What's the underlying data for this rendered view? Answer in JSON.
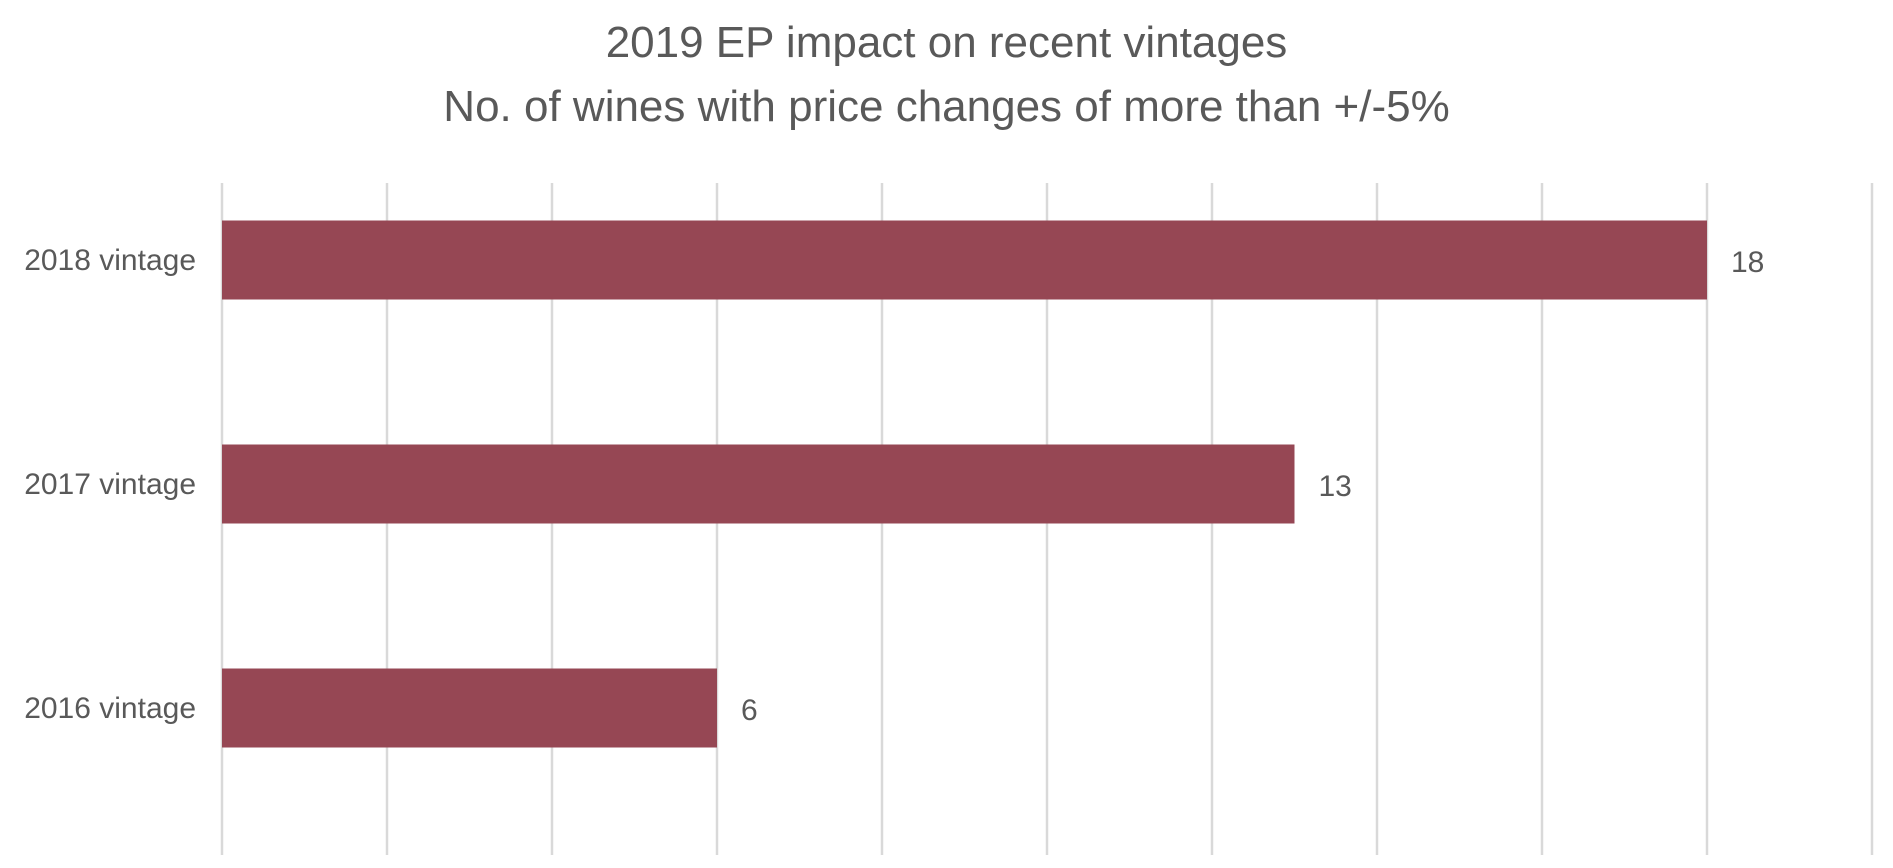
{
  "chart_data": {
    "type": "bar",
    "orientation": "horizontal",
    "title": "2019 EP impact on recent vintages",
    "subtitle": "No. of wines with price changes of more than +/-5%",
    "categories": [
      "2018 vintage",
      "2017 vintage",
      "2016 vintage"
    ],
    "values": [
      18,
      13,
      6
    ],
    "xlabel": "",
    "ylabel": "",
    "xlim": [
      0,
      20
    ],
    "grid": true,
    "legend": "none",
    "data_labels": true,
    "x_tick_labels_visible": false,
    "colors": {
      "bar": "#964754",
      "grid": "#d9d9d9",
      "text": "#595959"
    }
  }
}
